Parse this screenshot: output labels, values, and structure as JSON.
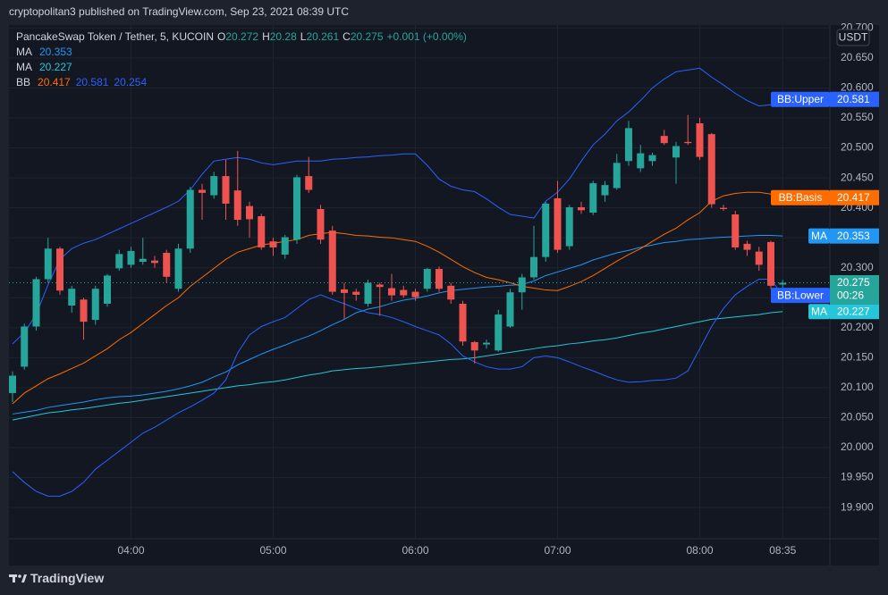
{
  "header": {
    "publisher": "cryptopolitan3 published on TradingView.com, Sep 23, 2021 08:39 UTC",
    "brand": "TradingView"
  },
  "chart_data": {
    "type": "candlestick",
    "title": "PancakeSwap Token / Tether, 5, KUCOIN",
    "ohlc_labels": [
      "O",
      "H",
      "L",
      "C"
    ],
    "change": "+0.001 (+0.00%)",
    "currency": "USDT",
    "countdown": "00:26",
    "categories": [
      null,
      null,
      null,
      null,
      null,
      null,
      null,
      null,
      null,
      null,
      "04:00",
      null,
      null,
      null,
      null,
      null,
      null,
      null,
      null,
      null,
      null,
      null,
      "05:00",
      null,
      null,
      null,
      null,
      null,
      null,
      null,
      null,
      null,
      null,
      null,
      "06:00",
      null,
      null,
      null,
      null,
      null,
      null,
      null,
      null,
      null,
      null,
      null,
      "07:00",
      null,
      null,
      null,
      null,
      null,
      null,
      null,
      null,
      null,
      null,
      null,
      "08:00",
      null,
      null,
      null,
      null,
      null,
      null,
      "08:35"
    ],
    "open": [
      20.091,
      20.135,
      20.202,
      20.281,
      20.332,
      20.237,
      20.247,
      20.213,
      20.24,
      20.299,
      20.305,
      20.31,
      20.312,
      20.325,
      20.265,
      20.332,
      20.43,
      20.421,
      20.453,
      20.429,
      20.403,
      20.386,
      20.344,
      20.322,
      20.347,
      20.453,
      20.398,
      20.362,
      20.264,
      20.26,
      20.24,
      20.272,
      20.266,
      20.263,
      20.26,
      20.265,
      20.298,
      20.27,
      20.24,
      20.176,
      20.172,
      20.162,
      20.202,
      20.259,
      20.284,
      20.318,
      20.416,
      20.336,
      20.401,
      20.392,
      20.421,
      20.433,
      20.478,
      20.466,
      20.478,
      20.52,
      20.484,
      20.51,
      20.541,
      20.523,
      20.4,
      20.389,
      20.34,
      20.327,
      20.343,
      20.272
    ],
    "high": [
      20.127,
      20.207,
      20.285,
      20.35,
      20.335,
      20.27,
      20.25,
      20.27,
      20.29,
      20.33,
      20.335,
      20.35,
      20.32,
      20.33,
      20.34,
      20.435,
      20.44,
      20.46,
      20.48,
      20.495,
      20.41,
      20.39,
      20.35,
      20.355,
      20.455,
      20.485,
      20.405,
      20.37,
      20.275,
      20.265,
      20.28,
      20.275,
      20.29,
      20.27,
      20.265,
      20.3,
      20.302,
      20.275,
      20.245,
      20.178,
      20.18,
      20.23,
      20.265,
      20.29,
      20.37,
      20.41,
      20.445,
      20.405,
      20.41,
      20.445,
      20.445,
      20.49,
      20.545,
      20.505,
      20.492,
      20.53,
      20.51,
      20.555,
      20.55,
      20.525,
      20.405,
      20.395,
      20.345,
      20.335,
      20.345,
      20.28
    ],
    "low": [
      20.076,
      20.13,
      20.195,
      20.275,
      20.255,
      20.225,
      20.18,
      20.205,
      20.235,
      20.295,
      20.3,
      20.305,
      20.3,
      20.275,
      20.26,
      20.325,
      20.38,
      20.415,
      20.38,
      20.37,
      20.35,
      20.33,
      20.32,
      20.315,
      20.34,
      20.425,
      20.34,
      20.255,
      20.215,
      20.245,
      20.235,
      20.22,
      20.245,
      20.25,
      20.245,
      20.26,
      20.26,
      20.24,
      20.17,
      20.14,
      20.165,
      20.16,
      20.2,
      20.23,
      20.28,
      20.31,
      20.325,
      20.33,
      20.39,
      20.388,
      20.41,
      20.43,
      20.47,
      20.46,
      20.47,
      20.505,
      20.44,
      20.505,
      20.48,
      20.4,
      20.395,
      20.33,
      20.32,
      20.295,
      20.265,
      20.261
    ],
    "close": [
      20.12,
      20.202,
      20.281,
      20.332,
      20.262,
      20.265,
      20.21,
      20.265,
      20.287,
      20.323,
      20.328,
      20.315,
      20.308,
      20.285,
      20.332,
      20.43,
      20.425,
      20.453,
      20.407,
      20.38,
      20.381,
      20.334,
      20.334,
      20.351,
      20.451,
      20.43,
      20.347,
      20.26,
      20.258,
      20.255,
      20.275,
      20.268,
      20.254,
      20.254,
      20.251,
      20.298,
      20.265,
      20.247,
      20.177,
      20.162,
      20.175,
      20.222,
      20.259,
      20.284,
      20.318,
      20.407,
      20.33,
      20.401,
      20.396,
      20.441,
      20.438,
      20.475,
      20.533,
      20.491,
      20.488,
      20.508,
      20.503,
      20.508,
      20.485,
      20.406,
      20.398,
      20.334,
      20.33,
      20.305,
      20.27,
      20.275
    ],
    "up_color": "#26a69a",
    "down_color": "#ef5350",
    "series": [
      {
        "name": "MA",
        "color": "#2196f3",
        "values": [
          20.056,
          20.059,
          20.062,
          20.067,
          20.07,
          20.073,
          20.076,
          20.08,
          20.083,
          20.085,
          20.086,
          20.088,
          20.091,
          20.094,
          20.098,
          20.103,
          20.109,
          20.118,
          20.126,
          20.138,
          20.147,
          20.156,
          20.164,
          20.171,
          20.179,
          20.186,
          20.195,
          20.205,
          20.214,
          20.225,
          20.231,
          20.235,
          20.241,
          20.246,
          20.249,
          20.253,
          20.258,
          20.262,
          20.264,
          20.266,
          20.268,
          20.269,
          20.271,
          20.272,
          20.278,
          20.287,
          20.293,
          20.299,
          20.305,
          20.313,
          20.319,
          20.325,
          20.329,
          20.334,
          20.338,
          20.342,
          20.344,
          20.347,
          20.348,
          20.35,
          20.351,
          20.352,
          20.353,
          20.354,
          20.354,
          20.353
        ]
      },
      {
        "name": "MA",
        "color": "#26c6da",
        "values": [
          20.046,
          20.05,
          20.054,
          20.058,
          20.06,
          20.063,
          20.065,
          20.068,
          20.071,
          20.074,
          20.076,
          20.079,
          20.082,
          20.085,
          20.088,
          20.091,
          20.094,
          20.097,
          20.1,
          20.103,
          20.105,
          20.108,
          20.11,
          20.113,
          20.117,
          20.121,
          20.124,
          20.128,
          20.13,
          20.132,
          20.133,
          20.135,
          20.137,
          20.139,
          20.141,
          20.143,
          20.145,
          20.147,
          20.148,
          20.15,
          20.153,
          20.156,
          20.159,
          20.162,
          20.165,
          20.168,
          20.17,
          20.173,
          20.175,
          20.178,
          20.18,
          20.183,
          20.187,
          20.191,
          20.194,
          20.198,
          20.202,
          20.206,
          20.21,
          20.214,
          20.216,
          20.218,
          20.22,
          20.222,
          20.225,
          20.227
        ]
      },
      {
        "name": "BB",
        "bands": [
          {
            "name": "BB:Basis",
            "color": "#ff6d00",
            "values": [
              20.073,
              20.091,
              20.103,
              20.115,
              20.123,
              20.132,
              20.141,
              20.153,
              20.165,
              20.18,
              20.192,
              20.207,
              20.222,
              20.237,
              20.25,
              20.269,
              20.284,
              20.299,
              20.314,
              20.326,
              20.332,
              20.338,
              20.341,
              20.344,
              20.347,
              20.354,
              20.357,
              20.359,
              20.357,
              20.354,
              20.353,
              20.351,
              20.35,
              20.347,
              20.344,
              20.336,
              20.326,
              20.314,
              20.302,
              20.292,
              20.284,
              20.28,
              20.275,
              20.269,
              20.266,
              20.263,
              20.262,
              20.269,
              20.277,
              20.287,
              20.299,
              20.311,
              20.322,
              20.332,
              20.344,
              20.356,
              20.366,
              20.38,
              20.392,
              20.411,
              20.42,
              20.424,
              20.426,
              20.426,
              20.423,
              20.417
            ]
          },
          {
            "name": "BB:Upper",
            "color": "#2962ff",
            "values": [
              20.173,
              20.192,
              20.222,
              20.272,
              20.314,
              20.332,
              20.341,
              20.347,
              20.356,
              20.365,
              20.374,
              20.383,
              20.392,
              20.401,
              20.411,
              20.43,
              20.456,
              20.478,
              20.481,
              20.484,
              20.481,
              20.475,
              20.472,
              20.475,
              20.478,
              20.478,
              20.478,
              20.481,
              20.482,
              20.484,
              20.485,
              20.487,
              20.488,
              20.49,
              20.49,
              20.471,
              20.448,
              20.436,
              20.43,
              20.427,
              20.415,
              20.401,
              20.389,
              20.386,
              20.383,
              20.411,
              20.426,
              20.448,
              20.478,
              20.505,
              20.523,
              20.545,
              20.56,
              20.579,
              20.6,
              20.615,
              20.627,
              20.63,
              20.633,
              20.618,
              20.605,
              20.591,
              20.579,
              20.57,
              20.572,
              20.581
            ]
          },
          {
            "name": "BB:Lower",
            "color": "#2962ff",
            "values": [
              19.96,
              19.942,
              19.927,
              19.919,
              19.919,
              19.927,
              19.942,
              19.964,
              19.979,
              19.994,
              20.009,
              20.024,
              20.034,
              20.046,
              20.058,
              20.068,
              20.079,
              20.091,
              20.113,
              20.158,
              20.188,
              20.202,
              20.21,
              20.217,
              20.232,
              20.247,
              20.255,
              20.247,
              20.24,
              20.232,
              20.225,
              20.222,
              20.217,
              20.21,
              20.202,
              20.195,
              20.188,
              20.173,
              20.153,
              20.143,
              20.135,
              20.131,
              20.131,
              20.135,
              20.15,
              20.153,
              20.15,
              20.143,
              20.135,
              20.128,
              20.12,
              20.113,
              20.109,
              20.11,
              20.112,
              20.113,
              20.116,
              20.128,
              20.165,
              20.202,
              20.232,
              20.255,
              20.269,
              20.281,
              20.281,
              20.254
            ]
          }
        ]
      }
    ],
    "ylim": [
      19.848,
      20.705
    ],
    "yticks": [
      {
        "value": 19.9,
        "label": "19.900"
      },
      {
        "value": 19.95,
        "label": "19.950"
      },
      {
        "value": 20,
        "label": "20.000"
      },
      {
        "value": 20.05,
        "label": "20.050"
      },
      {
        "value": 20.1,
        "label": "20.100"
      },
      {
        "value": 20.15,
        "label": "20.150"
      },
      {
        "value": 20.2,
        "label": "20.200"
      },
      {
        "value": 20.25,
        "label": "20.250"
      },
      {
        "value": 20.3,
        "label": "20.300"
      },
      {
        "value": 20.35,
        "label": "20.350"
      },
      {
        "value": 20.4,
        "label": "20.400"
      },
      {
        "value": 20.45,
        "label": "20.450"
      },
      {
        "value": 20.5,
        "label": "20.500"
      },
      {
        "value": 20.55,
        "label": "20.550"
      },
      {
        "value": 20.6,
        "label": "20.600"
      },
      {
        "value": 20.65,
        "label": "20.650"
      },
      {
        "value": 20.7,
        "label": "20.700"
      }
    ],
    "grid": true
  }
}
